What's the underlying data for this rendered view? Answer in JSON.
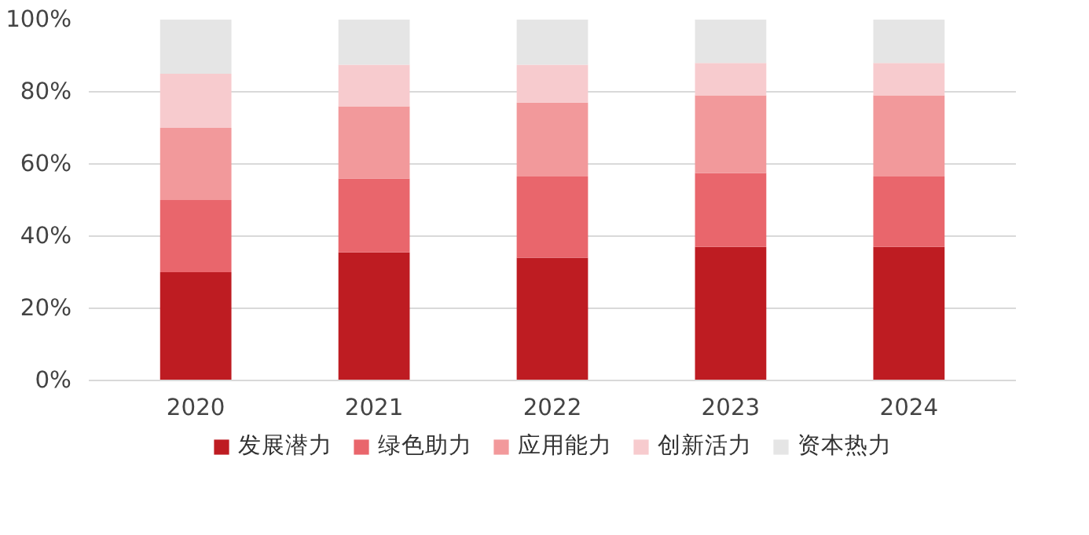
{
  "chart_data": {
    "type": "bar",
    "stacked": true,
    "categories": [
      "2020",
      "2021",
      "2022",
      "2023",
      "2024"
    ],
    "series": [
      {
        "name": "发展潜力",
        "color": "#be1c22",
        "values": [
          30,
          35.5,
          34,
          37,
          37
        ]
      },
      {
        "name": "绿色助力",
        "color": "#e9666c",
        "values": [
          20,
          20.5,
          22.5,
          20.5,
          19.5
        ]
      },
      {
        "name": "应用能力",
        "color": "#f2999b",
        "values": [
          20,
          20,
          20.5,
          21.5,
          22.5
        ]
      },
      {
        "name": "创新活力",
        "color": "#f7cbce",
        "values": [
          15,
          11.5,
          10.5,
          9,
          9
        ]
      },
      {
        "name": "资本热力",
        "color": "#e5e5e5",
        "values": [
          15,
          12.5,
          12.5,
          12,
          12
        ]
      }
    ],
    "ylim": [
      0,
      100
    ],
    "yticks": [
      {
        "value": 0,
        "label": "0%"
      },
      {
        "value": 20,
        "label": "20%"
      },
      {
        "value": 40,
        "label": "40%"
      },
      {
        "value": 60,
        "label": "60%"
      },
      {
        "value": 80,
        "label": "80%"
      },
      {
        "value": 100,
        "label": "100%"
      }
    ],
    "grid": "y",
    "legend": "bottom"
  }
}
